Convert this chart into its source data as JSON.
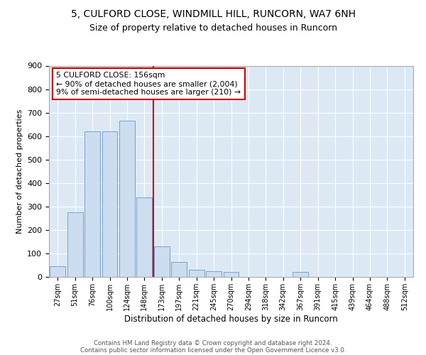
{
  "title1": "5, CULFORD CLOSE, WINDMILL HILL, RUNCORN, WA7 6NH",
  "title2": "Size of property relative to detached houses in Runcorn",
  "xlabel": "Distribution of detached houses by size in Runcorn",
  "ylabel": "Number of detached properties",
  "categories": [
    "27sqm",
    "51sqm",
    "76sqm",
    "100sqm",
    "124sqm",
    "148sqm",
    "173sqm",
    "197sqm",
    "221sqm",
    "245sqm",
    "270sqm",
    "294sqm",
    "318sqm",
    "342sqm",
    "367sqm",
    "391sqm",
    "415sqm",
    "439sqm",
    "464sqm",
    "488sqm",
    "512sqm"
  ],
  "values": [
    45,
    275,
    620,
    620,
    665,
    340,
    130,
    65,
    30,
    25,
    20,
    0,
    0,
    0,
    20,
    0,
    0,
    0,
    0,
    0,
    0
  ],
  "bar_color": "#ccddf0",
  "bar_edge_color": "#5588bb",
  "vline_color": "#cc0000",
  "annotation_text": "5 CULFORD CLOSE: 156sqm\n← 90% of detached houses are smaller (2,004)\n9% of semi-detached houses are larger (210) →",
  "annotation_box_color": "#cc0000",
  "ylim": [
    0,
    900
  ],
  "yticks": [
    0,
    100,
    200,
    300,
    400,
    500,
    600,
    700,
    800,
    900
  ],
  "footer1": "Contains HM Land Registry data © Crown copyright and database right 2024.",
  "footer2": "Contains public sector information licensed under the Open Government Licence v3.0.",
  "plot_bg_color": "#dce9f5",
  "title1_fontsize": 10,
  "title2_fontsize": 9
}
